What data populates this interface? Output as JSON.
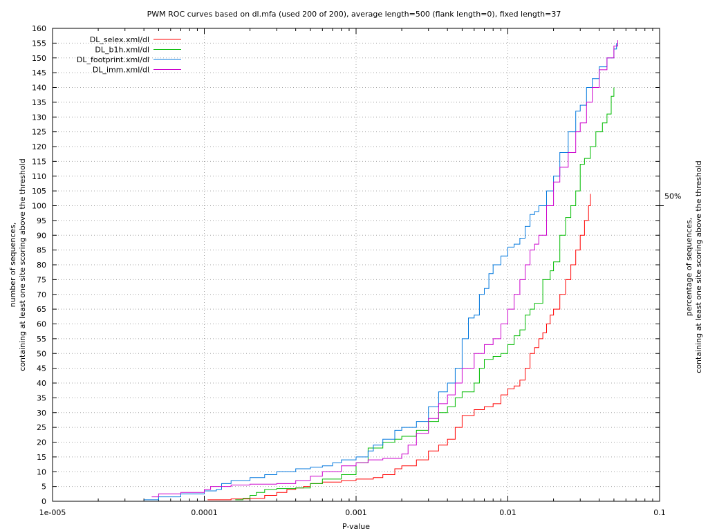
{
  "chart_data": {
    "type": "line",
    "title": "PWM ROC curves based on dl.mfa (used 200 of 200), average length=500 (flank length=0), fixed length=37",
    "xlabel": "P-value",
    "ylabel_line1": "number of sequences,",
    "ylabel_line2": "containing at least one site scoring above the threshold",
    "y2label_line1": "percentage of sequences,",
    "y2label_line2": "containing at least one site scoring above the threshold",
    "y2_tick_label": "50%",
    "y2_tick_value": 100,
    "xscale": "log",
    "xlim": [
      1e-05,
      0.1
    ],
    "ylim": [
      0,
      160
    ],
    "grid": true,
    "legend_position": "top-left",
    "x_ticks": [
      1e-05,
      0.0001,
      0.001,
      0.01,
      0.1
    ],
    "x_tick_labels": [
      "1e-005",
      "0.0001",
      "0.001",
      "0.01",
      "0.1"
    ],
    "y_ticks": [
      0,
      5,
      10,
      15,
      20,
      25,
      30,
      35,
      40,
      45,
      50,
      55,
      60,
      65,
      70,
      75,
      80,
      85,
      90,
      95,
      100,
      105,
      110,
      115,
      120,
      125,
      130,
      135,
      140,
      145,
      150,
      155,
      160
    ],
    "series": [
      {
        "name": "DL_selex.xml/dl",
        "color": "#ff0000",
        "points": [
          [
            0.000105,
            0.5
          ],
          [
            0.00015,
            0.8
          ],
          [
            0.0002,
            1
          ],
          [
            0.00025,
            2
          ],
          [
            0.0003,
            3
          ],
          [
            0.00035,
            4
          ],
          [
            0.0004,
            4.5
          ],
          [
            0.00045,
            5
          ],
          [
            0.0005,
            6
          ],
          [
            0.0006,
            6.5
          ],
          [
            0.0008,
            7
          ],
          [
            0.001,
            7.5
          ],
          [
            0.0013,
            8
          ],
          [
            0.0015,
            9
          ],
          [
            0.0018,
            11
          ],
          [
            0.002,
            12
          ],
          [
            0.0025,
            14
          ],
          [
            0.003,
            17
          ],
          [
            0.0035,
            19
          ],
          [
            0.004,
            21
          ],
          [
            0.0045,
            25
          ],
          [
            0.005,
            29
          ],
          [
            0.006,
            31
          ],
          [
            0.007,
            32
          ],
          [
            0.008,
            33
          ],
          [
            0.009,
            36
          ],
          [
            0.01,
            38
          ],
          [
            0.011,
            39
          ],
          [
            0.012,
            41
          ],
          [
            0.013,
            45
          ],
          [
            0.014,
            50
          ],
          [
            0.015,
            52
          ],
          [
            0.016,
            55
          ],
          [
            0.017,
            57
          ],
          [
            0.018,
            60
          ],
          [
            0.019,
            63
          ],
          [
            0.02,
            65
          ],
          [
            0.022,
            70
          ],
          [
            0.024,
            75
          ],
          [
            0.026,
            80
          ],
          [
            0.028,
            85
          ],
          [
            0.03,
            90
          ],
          [
            0.032,
            95
          ],
          [
            0.034,
            100
          ],
          [
            0.035,
            104
          ]
        ]
      },
      {
        "name": "DL_b1h.xml/dl",
        "color": "#00bb00",
        "points": [
          [
            0.00016,
            0.5
          ],
          [
            0.00018,
            1
          ],
          [
            0.0002,
            2
          ],
          [
            0.00022,
            3
          ],
          [
            0.00025,
            4
          ],
          [
            0.0003,
            4.3
          ],
          [
            0.0004,
            4.5
          ],
          [
            0.0005,
            6
          ],
          [
            0.0006,
            7.5
          ],
          [
            0.0008,
            9
          ],
          [
            0.001,
            13
          ],
          [
            0.0012,
            18
          ],
          [
            0.0015,
            20
          ],
          [
            0.0018,
            21
          ],
          [
            0.002,
            22
          ],
          [
            0.0025,
            24
          ],
          [
            0.003,
            27
          ],
          [
            0.0035,
            30
          ],
          [
            0.004,
            32
          ],
          [
            0.0045,
            35
          ],
          [
            0.005,
            37
          ],
          [
            0.006,
            40
          ],
          [
            0.0065,
            45
          ],
          [
            0.007,
            48
          ],
          [
            0.008,
            49
          ],
          [
            0.009,
            50
          ],
          [
            0.01,
            53
          ],
          [
            0.011,
            56
          ],
          [
            0.012,
            58
          ],
          [
            0.013,
            63
          ],
          [
            0.014,
            65
          ],
          [
            0.015,
            67
          ],
          [
            0.017,
            75
          ],
          [
            0.019,
            78
          ],
          [
            0.02,
            81
          ],
          [
            0.022,
            90
          ],
          [
            0.024,
            96
          ],
          [
            0.026,
            100
          ],
          [
            0.028,
            105
          ],
          [
            0.03,
            114
          ],
          [
            0.032,
            116
          ],
          [
            0.035,
            120
          ],
          [
            0.038,
            125
          ],
          [
            0.042,
            128
          ],
          [
            0.045,
            131
          ],
          [
            0.048,
            137
          ],
          [
            0.05,
            140
          ]
        ]
      },
      {
        "name": "DL_footprint.xml/dl",
        "color": "#0077dd",
        "points": [
          [
            4e-05,
            0.5
          ],
          [
            5e-05,
            1.5
          ],
          [
            7e-05,
            2.5
          ],
          [
            0.0001,
            3.5
          ],
          [
            0.00012,
            4
          ],
          [
            0.00013,
            6
          ],
          [
            0.00015,
            7
          ],
          [
            0.0002,
            8
          ],
          [
            0.00025,
            9
          ],
          [
            0.0003,
            10
          ],
          [
            0.0004,
            11
          ],
          [
            0.0005,
            11.5
          ],
          [
            0.0006,
            12
          ],
          [
            0.0007,
            13
          ],
          [
            0.0008,
            14
          ],
          [
            0.001,
            15
          ],
          [
            0.0012,
            17
          ],
          [
            0.0013,
            19
          ],
          [
            0.0015,
            21
          ],
          [
            0.0018,
            24
          ],
          [
            0.002,
            25
          ],
          [
            0.0025,
            27
          ],
          [
            0.003,
            32
          ],
          [
            0.0035,
            37
          ],
          [
            0.004,
            40
          ],
          [
            0.0045,
            45
          ],
          [
            0.005,
            55
          ],
          [
            0.0055,
            62
          ],
          [
            0.006,
            63
          ],
          [
            0.0065,
            70
          ],
          [
            0.007,
            72
          ],
          [
            0.0075,
            77
          ],
          [
            0.008,
            80
          ],
          [
            0.009,
            83
          ],
          [
            0.01,
            86
          ],
          [
            0.011,
            87
          ],
          [
            0.012,
            89
          ],
          [
            0.013,
            93
          ],
          [
            0.014,
            97
          ],
          [
            0.015,
            98
          ],
          [
            0.016,
            100
          ],
          [
            0.018,
            105
          ],
          [
            0.02,
            110
          ],
          [
            0.022,
            118
          ],
          [
            0.025,
            125
          ],
          [
            0.028,
            132
          ],
          [
            0.03,
            134
          ],
          [
            0.033,
            140
          ],
          [
            0.036,
            143
          ],
          [
            0.04,
            147
          ],
          [
            0.045,
            150
          ],
          [
            0.05,
            153
          ],
          [
            0.052,
            155
          ]
        ]
      },
      {
        "name": "DL_imm.xml/dl",
        "color": "#cc00cc",
        "points": [
          [
            4.5e-05,
            1.5
          ],
          [
            5e-05,
            2.5
          ],
          [
            7e-05,
            3
          ],
          [
            0.0001,
            4
          ],
          [
            0.00011,
            5
          ],
          [
            0.00015,
            5.5
          ],
          [
            0.0002,
            5.8
          ],
          [
            0.0003,
            6
          ],
          [
            0.0004,
            7
          ],
          [
            0.0005,
            8.5
          ],
          [
            0.0006,
            10
          ],
          [
            0.0008,
            12
          ],
          [
            0.001,
            13
          ],
          [
            0.0012,
            14
          ],
          [
            0.0015,
            14.5
          ],
          [
            0.002,
            16
          ],
          [
            0.0022,
            19
          ],
          [
            0.0025,
            23
          ],
          [
            0.003,
            28
          ],
          [
            0.0035,
            33
          ],
          [
            0.004,
            36
          ],
          [
            0.0045,
            40
          ],
          [
            0.005,
            45
          ],
          [
            0.006,
            50
          ],
          [
            0.007,
            53
          ],
          [
            0.008,
            55
          ],
          [
            0.009,
            60
          ],
          [
            0.01,
            65
          ],
          [
            0.011,
            70
          ],
          [
            0.012,
            75
          ],
          [
            0.013,
            80
          ],
          [
            0.014,
            85
          ],
          [
            0.015,
            87
          ],
          [
            0.016,
            90
          ],
          [
            0.018,
            100
          ],
          [
            0.02,
            108
          ],
          [
            0.022,
            113
          ],
          [
            0.025,
            118
          ],
          [
            0.028,
            125
          ],
          [
            0.03,
            128
          ],
          [
            0.033,
            135
          ],
          [
            0.036,
            140
          ],
          [
            0.04,
            146
          ],
          [
            0.045,
            150
          ],
          [
            0.05,
            154
          ],
          [
            0.053,
            156
          ]
        ]
      }
    ]
  }
}
